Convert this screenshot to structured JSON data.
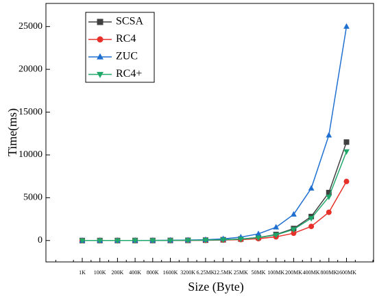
{
  "chart_data": {
    "type": "line",
    "x_label": "Size (Byte)",
    "y_label": "Time(ms)",
    "categories": [
      "1K",
      "100K",
      "200K",
      "400K",
      "800K",
      "1600K",
      "3200K",
      "6.25MK",
      "12.5MK",
      "25MK",
      "50MK",
      "100MK",
      "200MK",
      "400MK",
      "800MK",
      "1600MK"
    ],
    "series": [
      {
        "name": "SCSA",
        "color": "#404040",
        "marker": "square",
        "values": [
          0,
          0.7,
          1.5,
          3,
          5,
          11,
          22,
          44,
          88,
          175,
          350,
          700,
          1400,
          2800,
          5600,
          11500
        ]
      },
      {
        "name": "RC4",
        "color": "#e8302a",
        "marker": "circle",
        "values": [
          0,
          0.5,
          1,
          2,
          3,
          7,
          13,
          27,
          54,
          108,
          215,
          430,
          850,
          1650,
          3300,
          6900
        ]
      },
      {
        "name": "ZUC",
        "color": "#1f6fd1",
        "marker": "triangle-up",
        "values": [
          0,
          1.5,
          3,
          6,
          12,
          25,
          50,
          98,
          195,
          390,
          780,
          1550,
          3050,
          6100,
          12300,
          25000
        ]
      },
      {
        "name": "RC4+",
        "color": "#1fa86a",
        "marker": "triangle-down",
        "values": [
          0,
          0.6,
          1.2,
          2.5,
          5,
          10,
          20,
          41,
          82,
          165,
          330,
          650,
          1300,
          2600,
          5100,
          10400
        ]
      }
    ],
    "ylim": [
      -2500,
      27700
    ],
    "yticks": [
      0,
      5000,
      10000,
      15000,
      20000,
      25000
    ],
    "legend": "upper left",
    "grid": false
  }
}
